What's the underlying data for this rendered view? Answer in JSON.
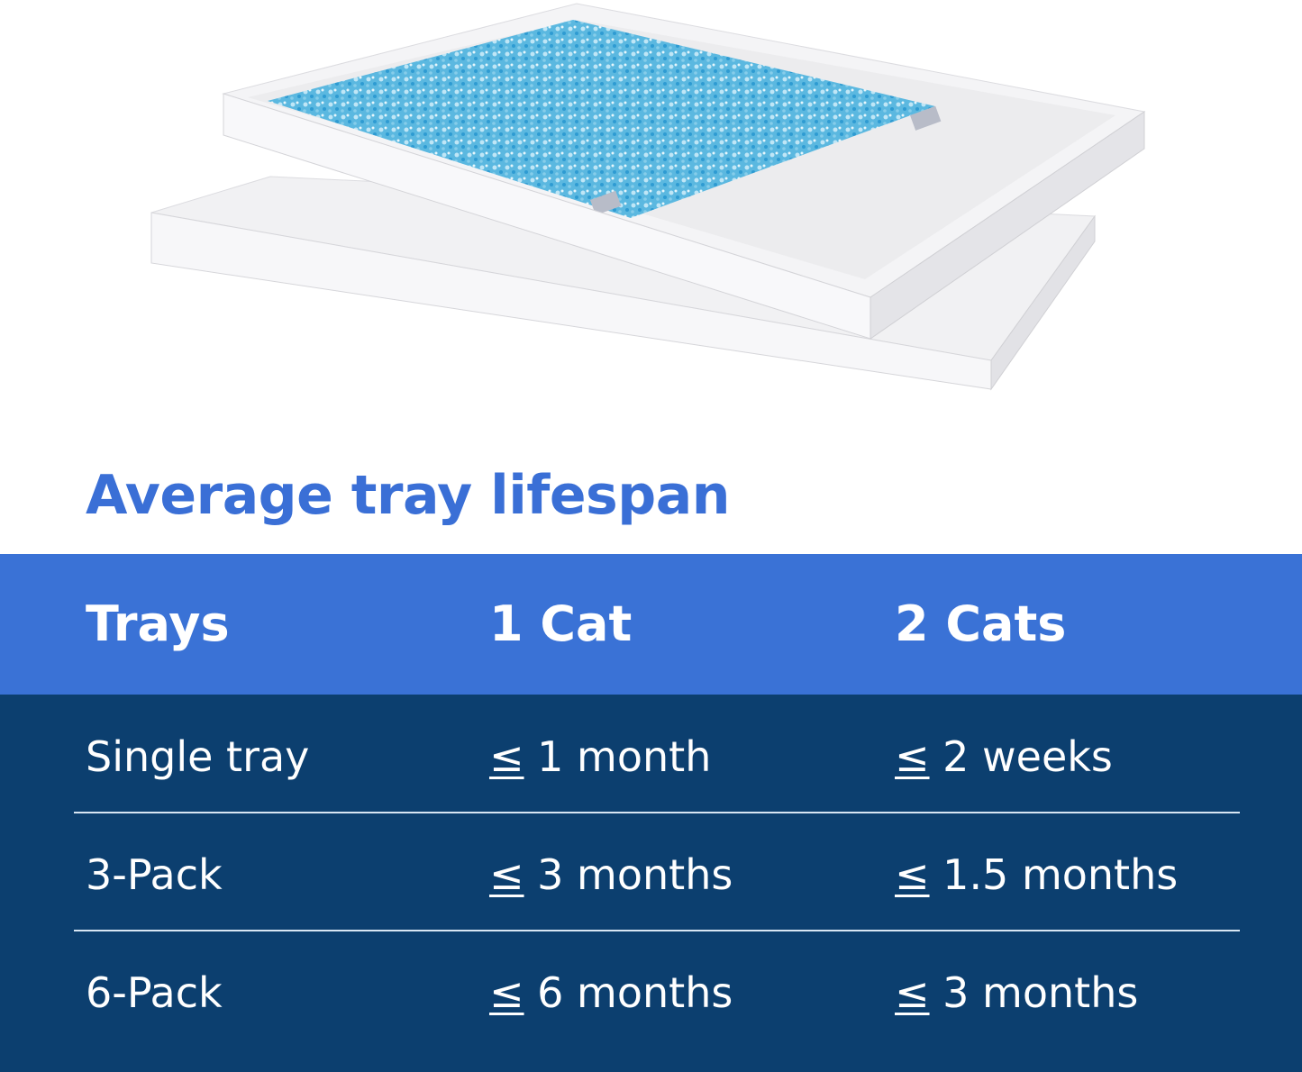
{
  "colors": {
    "title": "#3a6fd6",
    "header": "#3a72d6",
    "body": "#0c3f6f",
    "litter": "#5bb8e0"
  },
  "product_image": {
    "description_icon": "litter-tray-image"
  },
  "title": "Average tray lifespan",
  "table": {
    "headers": [
      "Trays",
      "1 Cat",
      "2 Cats"
    ],
    "rows": [
      {
        "trays": "Single tray",
        "one_cat": {
          "symbol": "≤",
          "value": "1 month"
        },
        "two_cats": {
          "symbol": "≤",
          "value": "2 weeks"
        }
      },
      {
        "trays": "3-Pack",
        "one_cat": {
          "symbol": "≤",
          "value": "3 months"
        },
        "two_cats": {
          "symbol": "≤",
          "value": "1.5 months"
        }
      },
      {
        "trays": "6-Pack",
        "one_cat": {
          "symbol": "≤",
          "value": "6 months"
        },
        "two_cats": {
          "symbol": "≤",
          "value": "3 months"
        }
      }
    ]
  }
}
